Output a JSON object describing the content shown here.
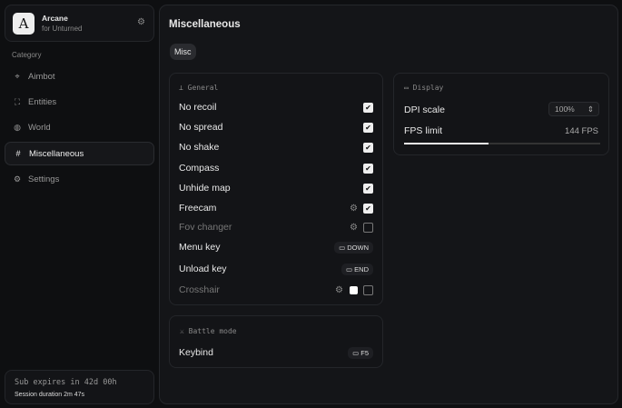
{
  "brand": {
    "logo": "A",
    "name": "Arcane",
    "subtitle": "for Unturned",
    "icon": "gear-icon"
  },
  "sidebar": {
    "category_label": "Category",
    "items": [
      {
        "label": "Aimbot",
        "icon": "crosshair-icon"
      },
      {
        "label": "Entities",
        "icon": "scan-icon"
      },
      {
        "label": "World",
        "icon": "globe-icon"
      },
      {
        "label": "Miscellaneous",
        "icon": "grid-icon",
        "active": true
      },
      {
        "label": "Settings",
        "icon": "gear-icon"
      }
    ]
  },
  "subscription": {
    "expires": "Sub expires in 42d 00h",
    "session": "Session duration 2m 47s"
  },
  "main": {
    "title": "Miscellaneous",
    "tabs": [
      {
        "label": "Misc",
        "active": true
      }
    ],
    "general": {
      "title": "General",
      "rows": [
        {
          "label": "No recoil",
          "checked": true
        },
        {
          "label": "No spread",
          "checked": true
        },
        {
          "label": "No shake",
          "checked": true
        },
        {
          "label": "Compass",
          "checked": true
        },
        {
          "label": "Unhide map",
          "checked": true
        },
        {
          "label": "Freecam",
          "checked": true,
          "settings": true
        },
        {
          "label": "Fov changer",
          "checked": false,
          "settings": true,
          "dim": true
        },
        {
          "label": "Menu key",
          "key": "DOWN"
        },
        {
          "label": "Unload key",
          "key": "END"
        },
        {
          "label": "Crosshair",
          "checked": false,
          "settings": true,
          "dim": true,
          "color": "#ffffff"
        }
      ]
    },
    "display": {
      "title": "Display",
      "dpi_label": "DPI scale",
      "dpi_value": "100%",
      "fps_label": "FPS limit",
      "fps_value": "144 FPS",
      "fps_fill": 0.43
    },
    "battle": {
      "title": "Battle mode",
      "keybind_label": "Keybind",
      "keybind_value": "F5"
    }
  }
}
